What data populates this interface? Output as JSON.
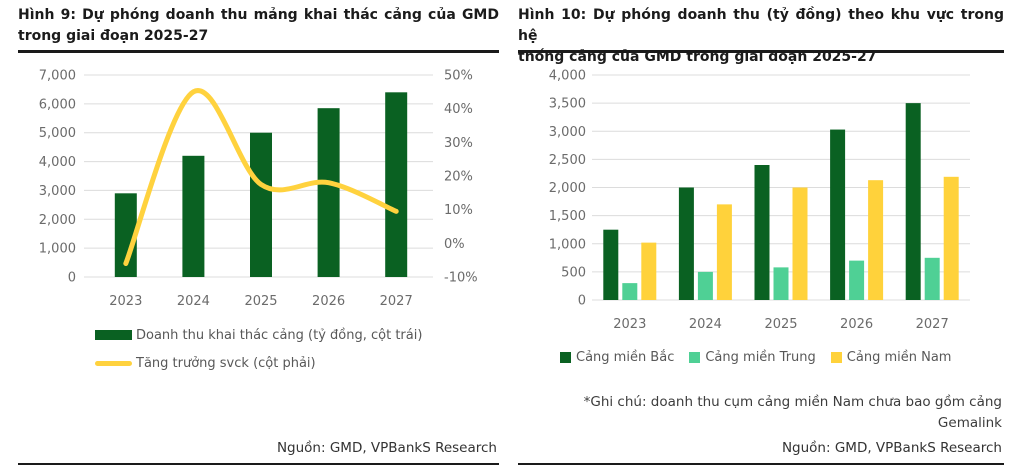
{
  "page": {
    "background": "#ffffff"
  },
  "colors": {
    "bar_green": "#0a6122",
    "mint_green": "#4fd095",
    "yellow": "#ffd23b",
    "line_yellow": "#ffd23e",
    "rule": "#1a1a1a",
    "gridline": "#dcdcdc",
    "tick_text": "#6b6b6b",
    "legend_text": "#585858"
  },
  "panels": {
    "figure9": {
      "title_lines": [
        "Hình 9: Dự phóng doanh thu mảng khai thác cảng của GMD",
        "trong giai đoạn 2025-27"
      ],
      "source": "Nguồn: GMD, VPBankS Research"
    },
    "figure10": {
      "title_lines": [
        "Hình 10: Dự phóng doanh thu (tỷ đồng) theo khu vực trong hệ",
        "thống cảng của GMD trong giai đoạn 2025-27"
      ],
      "note_lines": [
        "*Ghi chú: doanh thu cụm cảng miền Nam chưa bao gồm cảng",
        "Gemalink"
      ],
      "source": "Nguồn: GMD, VPBankS Research"
    }
  },
  "chart_data": [
    {
      "type": "bar",
      "subtype": "bar-line-combo",
      "title": "Hình 9: Dự phóng doanh thu mảng khai thác cảng của GMD trong giai đoạn 2025-27",
      "categories": [
        "2023",
        "2024",
        "2025",
        "2026",
        "2027"
      ],
      "series": [
        {
          "name": "Doanh thu khai thác cảng (tỷ đồng, cột trái)",
          "kind": "bar",
          "axis": "left",
          "color": "#0a6122",
          "values": [
            2900,
            4200,
            5000,
            5850,
            6400
          ]
        },
        {
          "name": "Tăng trưởng svck (cột phải)",
          "kind": "line",
          "axis": "right",
          "color": "#ffd23e",
          "values": [
            -6,
            45,
            17.5,
            18,
            9.5
          ]
        }
      ],
      "left_axis": {
        "min": 0,
        "max": 7000,
        "tick_labels": [
          "7,000",
          "6,000",
          "5,000",
          "4,000",
          "3,000",
          "2,000",
          "1,000",
          "0"
        ]
      },
      "right_axis": {
        "min": -10,
        "max": 50,
        "tick_labels": [
          "50%",
          "40%",
          "30%",
          "20%",
          "10%",
          "0%",
          "-10%"
        ]
      },
      "grid": true,
      "legend_position": "bottom-left"
    },
    {
      "type": "bar",
      "subtype": "grouped-bars",
      "title": "Hình 10: Dự phóng doanh thu (tỷ đồng) theo khu vực trong hệ thống cảng của GMD trong giai đoạn 2025-27",
      "categories": [
        "2023",
        "2024",
        "2025",
        "2026",
        "2027"
      ],
      "series": [
        {
          "name": "Cảng miền Bắc",
          "color": "#0a6122",
          "values": [
            1250,
            2000,
            2400,
            3030,
            3500
          ]
        },
        {
          "name": "Cảng miền Trung",
          "color": "#4fd095",
          "values": [
            300,
            500,
            580,
            700,
            750
          ]
        },
        {
          "name": "Cảng miền Nam",
          "color": "#ffd23b",
          "values": [
            1020,
            1700,
            2000,
            2130,
            2190
          ]
        }
      ],
      "y_axis": {
        "min": 0,
        "max": 4000,
        "tick_labels": [
          "4,000",
          "3,500",
          "3,000",
          "2,500",
          "2,000",
          "1,500",
          "1,000",
          "500",
          "0"
        ]
      },
      "grid": true,
      "legend_position": "bottom"
    }
  ]
}
